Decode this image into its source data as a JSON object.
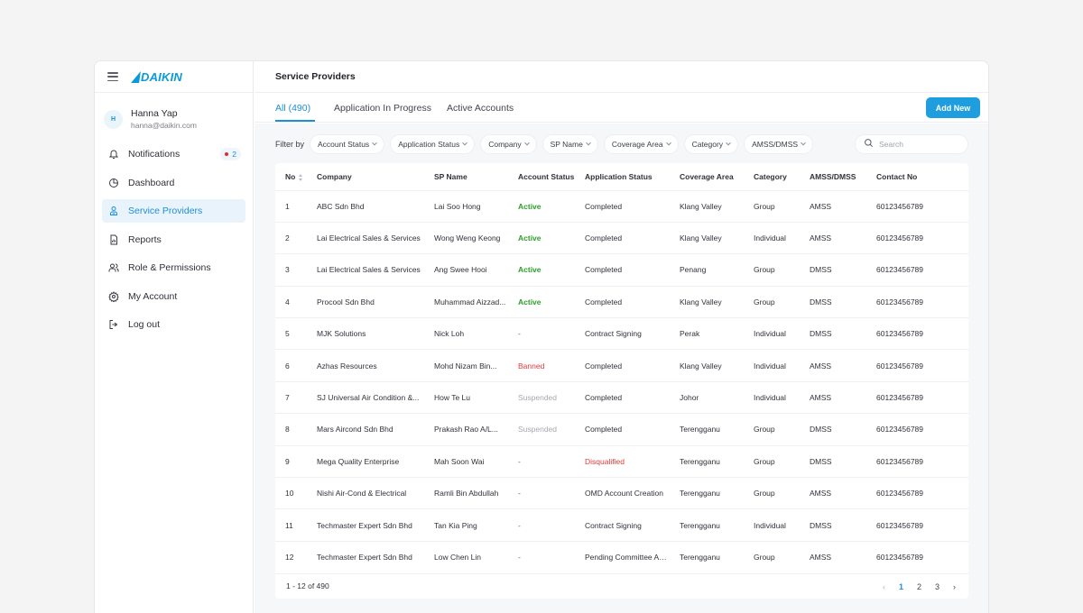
{
  "brand": {
    "logo_text": "DAIKIN",
    "accent": "#1e9ddf"
  },
  "user": {
    "initial": "H",
    "name": "Hanna Yap",
    "email": "hanna@daikin.com"
  },
  "nav": [
    {
      "label": "Notifications",
      "icon": "bell-icon",
      "badge": "2"
    },
    {
      "label": "Dashboard",
      "icon": "pie-chart-icon"
    },
    {
      "label": "Service Providers",
      "icon": "user-badge-icon",
      "active": true
    },
    {
      "label": "Reports",
      "icon": "report-icon"
    },
    {
      "label": "Role & Permissions",
      "icon": "users-icon"
    },
    {
      "label": "My Account",
      "icon": "gear-icon"
    },
    {
      "label": "Log out",
      "icon": "logout-icon"
    }
  ],
  "page": {
    "title": "Service Providers"
  },
  "tabs": [
    {
      "label": "All (490)",
      "active": true
    },
    {
      "label": "Application In Progress"
    },
    {
      "label": "Active Accounts"
    }
  ],
  "add_button": "Add New",
  "filter": {
    "label": "Filter by",
    "chips": [
      "Account Status",
      "Application Status",
      "Company",
      "SP Name",
      "Coverage Area",
      "Category",
      "AMSS/DMSS"
    ]
  },
  "search": {
    "placeholder": "Search"
  },
  "table": {
    "columns": [
      "No",
      "Company",
      "SP Name",
      "Account Status",
      "Application Status",
      "Coverage Area",
      "Category",
      "AMSS/DMSS",
      "Contact No"
    ],
    "rows": [
      [
        "1",
        "ABC Sdn Bhd",
        "Lai Soo Hong",
        "Active",
        "Completed",
        "Klang Valley",
        "Group",
        "AMSS",
        "60123456789"
      ],
      [
        "2",
        "Lai Electrical Sales & Services",
        "Wong Weng Keong",
        "Active",
        "Completed",
        "Klang Valley",
        "Individual",
        "AMSS",
        "60123456789"
      ],
      [
        "3",
        "Lai Electrical Sales & Services",
        "Ang Swee Hooi",
        "Active",
        "Completed",
        "Penang",
        "Group",
        "DMSS",
        "60123456789"
      ],
      [
        "4",
        "Procool Sdn Bhd",
        "Muhammad Aizzad...",
        "Active",
        "Completed",
        "Klang Valley",
        "Group",
        "DMSS",
        "60123456789"
      ],
      [
        "5",
        "MJK Solutions",
        "Nick Loh",
        "-",
        "Contract Signing",
        "Perak",
        "Individual",
        "DMSS",
        "60123456789"
      ],
      [
        "6",
        "Azhas Resources",
        "Mohd Nizam Bin...",
        "Banned",
        "Completed",
        "Klang Valley",
        "Individual",
        "AMSS",
        "60123456789"
      ],
      [
        "7",
        "SJ Universal Air Condition &...",
        "How Te Lu",
        "Suspended",
        "Completed",
        "Johor",
        "Individual",
        "AMSS",
        "60123456789"
      ],
      [
        "8",
        "Mars Aircond Sdn Bhd",
        "Prakash Rao A/L...",
        "Suspended",
        "Completed",
        "Terengganu",
        "Group",
        "DMSS",
        "60123456789"
      ],
      [
        "9",
        "Mega Quality Enterprise",
        "Mah Soon Wai",
        "-",
        "Disqualified",
        "Terengganu",
        "Group",
        "DMSS",
        "60123456789"
      ],
      [
        "10",
        "Nishi Air-Cond & Electrical",
        "Ramli Bin Abdullah",
        "-",
        "OMD Account Creation",
        "Terengganu",
        "Group",
        "AMSS",
        "60123456789"
      ],
      [
        "11",
        "Techmaster Expert Sdn Bhd",
        "Tan Kia Ping",
        "-",
        "Contract Signing",
        "Terengganu",
        "Individual",
        "DMSS",
        "60123456789"
      ],
      [
        "12",
        "Techmaster Expert Sdn Bhd",
        "Low Chen Lin",
        "-",
        "Pending Committee Ap...",
        "Terengganu",
        "Group",
        "AMSS",
        "60123456789"
      ]
    ]
  },
  "pagination": {
    "range": "1 - 12 of 490",
    "pages": [
      "1",
      "2",
      "3"
    ],
    "current": "1",
    "prev": "‹",
    "next": "›"
  }
}
